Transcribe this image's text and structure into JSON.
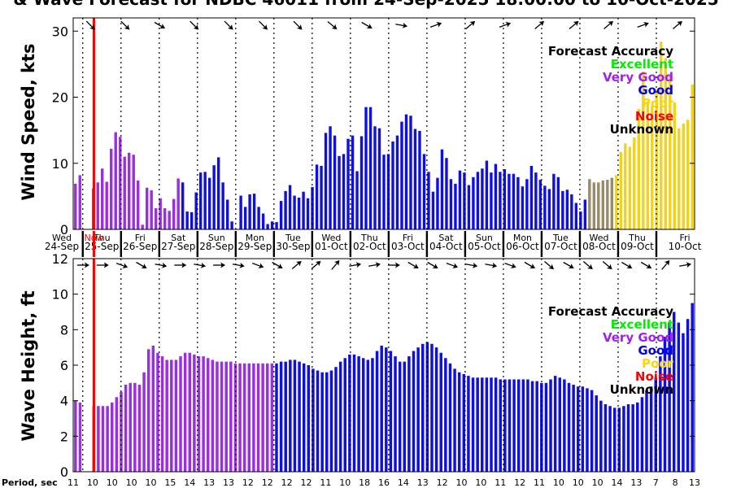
{
  "chart_data": {
    "type": "bar",
    "title": "& Wave Forecast for NDBC 46011 from 24-Sep-2025 18:00:00 to 10-Oct-2025",
    "legend": {
      "title": "Forecast Accuracy",
      "placement": "top-right",
      "entries": [
        {
          "label": "Excellent",
          "color": "#00ee00"
        },
        {
          "label": "Very Good",
          "color": "#a020f0"
        },
        {
          "label": "Good",
          "color": "#0000e0"
        },
        {
          "label": "Poor",
          "color": "#ffd700"
        },
        {
          "label": "Noise",
          "color": "#ff0000"
        },
        {
          "label": "Unknown",
          "color": "#000000"
        }
      ]
    },
    "colors": {
      "verygood": "#9a2ee0",
      "good": "#0f10e0",
      "unknown": "#9a8a6a",
      "poor": "#f2d21a",
      "now": "#ff0000"
    },
    "days": [
      {
        "day": "Wed",
        "date": "24-Sep"
      },
      {
        "day": "Thu",
        "date": "25-Sep"
      },
      {
        "day": "Fri",
        "date": "26-Sep"
      },
      {
        "day": "Sat",
        "date": "27-Sep"
      },
      {
        "day": "Sun",
        "date": "28-Sep"
      },
      {
        "day": "Mon",
        "date": "29-Sep"
      },
      {
        "day": "Tue",
        "date": "30-Sep"
      },
      {
        "day": "Wed",
        "date": "01-Oct"
      },
      {
        "day": "Thu",
        "date": "02-Oct"
      },
      {
        "day": "Fri",
        "date": "03-Oct"
      },
      {
        "day": "Sat",
        "date": "04-Oct"
      },
      {
        "day": "Sun",
        "date": "05-Oct"
      },
      {
        "day": "Mon",
        "date": "06-Oct"
      },
      {
        "day": "Tue",
        "date": "07-Oct"
      },
      {
        "day": "Wed",
        "date": "08-Oct"
      },
      {
        "day": "Thu",
        "date": "09-Oct"
      },
      {
        "day": "Fri",
        "date": "10-Oct"
      }
    ],
    "now_label": "Now",
    "period_label": "Period, sec",
    "periods": [
      "11",
      "10",
      "10",
      "10",
      "10",
      "15",
      "14",
      "13",
      "13",
      "12",
      "12",
      "12",
      "12",
      "11",
      "10",
      "18",
      "16",
      "14",
      "13",
      "12",
      "10",
      "10",
      "11",
      "12",
      "11",
      "10",
      "10",
      "10",
      "14",
      "13",
      "7",
      "8",
      "13"
    ],
    "wind": {
      "ylabel": "Wind Speed, kts",
      "ylim": [
        0,
        32
      ],
      "yticks": [
        0,
        10,
        20,
        30
      ],
      "segments": [
        {
          "quality": "verygood",
          "count": 24
        },
        {
          "quality": "good",
          "count": 91
        },
        {
          "quality": "unknown",
          "count": 6
        },
        {
          "quality": "poor",
          "count": 67
        }
      ],
      "values": [
        6.9,
        8.2,
        0,
        0,
        6.2,
        7.1,
        9.2,
        7.2,
        12.2,
        14.7,
        14.0,
        11.0,
        11.6,
        11.3,
        7.4,
        0.7,
        6.3,
        5.9,
        3.2,
        4.7,
        3.2,
        2.8,
        4.6,
        7.7,
        7.1,
        2.7,
        2.6,
        5.6,
        8.6,
        8.7,
        7.8,
        9.7,
        10.9,
        7.1,
        4.5,
        1.2,
        0,
        5.1,
        3.4,
        5.3,
        5.4,
        3.4,
        2.4,
        0.8,
        1.2,
        1.1,
        4.3,
        5.8,
        6.7,
        5.1,
        4.8,
        5.7,
        4.7,
        6.4,
        9.8,
        9.6,
        14.6,
        15.6,
        14.2,
        11.1,
        11.4,
        13.7,
        14.2,
        8.8,
        14.1,
        18.5,
        18.5,
        15.6,
        15.3,
        11.3,
        11.4,
        13.3,
        14.2,
        16.3,
        17.4,
        17.2,
        15.2,
        14.9,
        11.4,
        8.7,
        5.7,
        7.8,
        12.1,
        10.8,
        7.6,
        6.9,
        8.9,
        8.6,
        6.7,
        7.9,
        8.7,
        9.2,
        10.4,
        8.6,
        9.9,
        8.7,
        9.1,
        8.4,
        8.4,
        7.9,
        6.5,
        7.6,
        9.6,
        8.6,
        7.5,
        6.6,
        6.1,
        8.4,
        7.9,
        5.8,
        6.0,
        5.3,
        4.0,
        2.7,
        4.5,
        7.6,
        7.1,
        7.1,
        7.4,
        7.5,
        7.8,
        8.2,
        11.7,
        13.0,
        12.5,
        13.9,
        18.2,
        23.9,
        19.4,
        18.7,
        21.1,
        28.4,
        25.9,
        23.6,
        19.2,
        15.3,
        16.0,
        16.6,
        21.9
      ]
    },
    "wave": {
      "ylabel": "Wave Height, ft",
      "ylim": [
        0,
        12
      ],
      "yticks": [
        0,
        2,
        4,
        6,
        8,
        10,
        12
      ],
      "segments": [
        {
          "quality": "verygood",
          "count": 44
        },
        {
          "quality": "good",
          "count": 144
        }
      ],
      "values": [
        4.0,
        3.9,
        0,
        0,
        3.7,
        3.7,
        3.7,
        3.7,
        3.9,
        4.2,
        4.5,
        4.9,
        5.0,
        5.0,
        4.9,
        5.6,
        6.9,
        7.1,
        6.7,
        6.5,
        6.3,
        6.3,
        6.3,
        6.5,
        6.7,
        6.7,
        6.6,
        6.5,
        6.5,
        6.4,
        6.3,
        6.2,
        6.2,
        6.2,
        6.2,
        6.1,
        6.1,
        6.1,
        6.1,
        6.1,
        6.1,
        6.1,
        6.1,
        6.1,
        6.1,
        6.2,
        6.2,
        6.3,
        6.3,
        6.2,
        6.1,
        6.0,
        5.8,
        5.7,
        5.6,
        5.6,
        5.7,
        5.9,
        6.2,
        6.4,
        6.6,
        6.6,
        6.5,
        6.4,
        6.3,
        6.4,
        6.8,
        7.1,
        7.0,
        6.8,
        6.5,
        6.2,
        6.2,
        6.5,
        6.8,
        7.0,
        7.2,
        7.3,
        7.2,
        7.0,
        6.7,
        6.4,
        6.1,
        5.8,
        5.6,
        5.5,
        5.4,
        5.3,
        5.3,
        5.3,
        5.3,
        5.3,
        5.3,
        5.2,
        5.2,
        5.2,
        5.2,
        5.2,
        5.2,
        5.2,
        5.1,
        5.1,
        5.0,
        5.0,
        5.2,
        5.4,
        5.3,
        5.2,
        5.0,
        4.9,
        4.8,
        4.8,
        4.7,
        4.6,
        4.3,
        4.0,
        3.8,
        3.7,
        3.6,
        3.6,
        3.7,
        3.8,
        3.8,
        3.9,
        4.2,
        4.6,
        4.8,
        5.3,
        6.5,
        7.6,
        8.4,
        9.0,
        8.4,
        7.8,
        8.6,
        9.5
      ]
    },
    "wind_arrow_angles": [
      45,
      45,
      30,
      45,
      45,
      45,
      45,
      40,
      30,
      10,
      -20,
      -40,
      -20,
      -40,
      -40,
      -40,
      -20,
      -40
    ],
    "wave_arrow_angles": [
      0,
      0,
      20,
      30,
      10,
      0,
      10,
      0,
      10,
      20,
      30,
      -40,
      -40,
      -50,
      -10,
      -10,
      0,
      30,
      30,
      20,
      10,
      10,
      20,
      30,
      40,
      30,
      40,
      40,
      30,
      30,
      -50,
      -10
    ]
  }
}
